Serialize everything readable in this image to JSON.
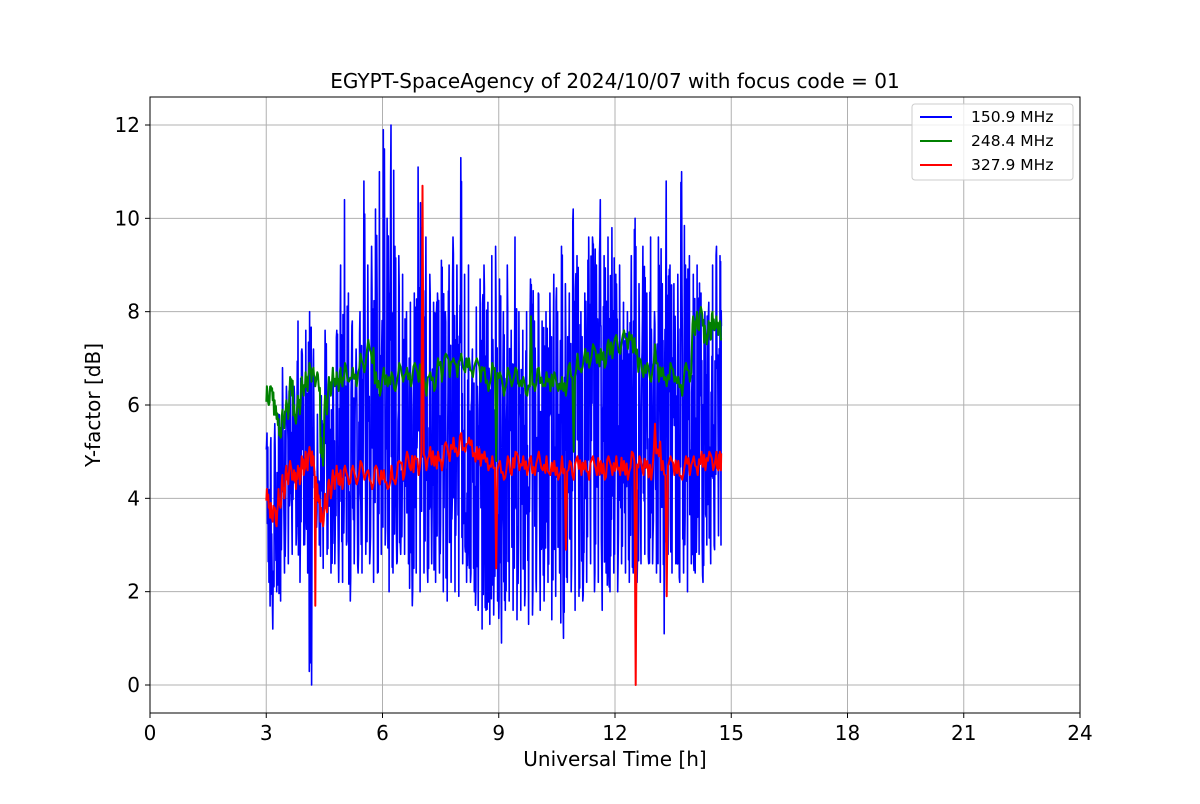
{
  "chart_data": {
    "type": "line",
    "title": "EGYPT-SpaceAgency of 2024/10/07 with focus code = 01",
    "xlabel": "Universal Time [h]",
    "ylabel": "Y-factor [dB]",
    "xlim": [
      0,
      24
    ],
    "ylim": [
      -0.6,
      12.6
    ],
    "xticks": [
      0,
      3,
      6,
      9,
      12,
      15,
      18,
      21,
      24
    ],
    "xtick_labels": [
      "0",
      "3",
      "6",
      "9",
      "12",
      "15",
      "18",
      "21",
      "24"
    ],
    "yticks": [
      0,
      2,
      4,
      6,
      8,
      10,
      12
    ],
    "ytick_labels": [
      "0",
      "2",
      "4",
      "6",
      "8",
      "10",
      "12"
    ],
    "grid": true,
    "legend_position": "top-right",
    "series": [
      {
        "name": "150.9 MHz",
        "color": "#0000ff",
        "x": [
          3.0,
          3.1,
          3.2,
          3.3,
          3.4,
          3.5,
          3.6,
          3.7,
          3.8,
          3.9,
          4.0,
          4.1,
          4.2,
          4.3,
          4.4,
          4.5,
          4.6,
          4.7,
          4.8,
          4.9,
          5.0,
          5.1,
          5.2,
          5.3,
          5.4,
          5.5,
          5.6,
          5.7,
          5.8,
          5.9,
          6.0,
          6.1,
          6.2,
          6.3,
          6.4,
          6.5,
          6.6,
          6.7,
          6.8,
          6.9,
          7.0,
          7.1,
          7.2,
          7.3,
          7.4,
          7.5,
          7.6,
          7.7,
          7.8,
          7.9,
          8.0,
          8.1,
          8.2,
          8.3,
          8.4,
          8.5,
          8.6,
          8.7,
          8.8,
          8.9,
          9.0,
          9.1,
          9.2,
          9.3,
          9.4,
          9.5,
          9.6,
          9.7,
          9.8,
          9.9,
          10.0,
          10.1,
          10.2,
          10.3,
          10.4,
          10.5,
          10.6,
          10.7,
          10.8,
          10.9,
          11.0,
          11.1,
          11.2,
          11.3,
          11.4,
          11.5,
          11.6,
          11.7,
          11.8,
          11.9,
          12.0,
          12.1,
          12.2,
          12.3,
          12.4,
          12.5,
          12.6,
          12.7,
          12.8,
          12.9,
          13.0,
          13.1,
          13.2,
          13.3,
          13.4,
          13.5,
          13.6,
          13.7,
          13.8,
          13.9,
          14.0,
          14.1,
          14.2,
          14.3,
          14.4,
          14.5,
          14.6,
          14.7
        ],
        "y_max": [
          5.4,
          5.3,
          5.6,
          5.8,
          6.8,
          6.4,
          6.6,
          6.4,
          7.8,
          7.2,
          7.6,
          8.0,
          7.2,
          5.8,
          6.2,
          7.6,
          6.6,
          6.8,
          7.6,
          9.0,
          10.4,
          8.4,
          7.8,
          7.2,
          8.0,
          10.8,
          9.0,
          9.4,
          10.2,
          11.0,
          11.9,
          10.0,
          12.0,
          9.4,
          9.2,
          8.8,
          8.0,
          8.2,
          8.4,
          11.1,
          9.8,
          9.6,
          8.8,
          8.2,
          8.4,
          9.1,
          8.0,
          9.0,
          9.6,
          9.0,
          11.3,
          8.8,
          9.0,
          7.2,
          8.1,
          8.7,
          9.0,
          8.2,
          9.2,
          9.4,
          8.7,
          8.0,
          9.0,
          7.6,
          9.6,
          8.0,
          7.6,
          8.0,
          8.7,
          7.8,
          8.4,
          7.8,
          8.0,
          8.4,
          8.8,
          8.0,
          9.4,
          8.6,
          8.4,
          10.2,
          9.2,
          8.0,
          8.4,
          9.6,
          9.6,
          9.0,
          10.4,
          9.2,
          9.6,
          9.8,
          8.8,
          9.0,
          8.2,
          8.0,
          9.2,
          10.0,
          8.6,
          9.4,
          8.4,
          9.6,
          8.0,
          9.6,
          8.6,
          10.8,
          9.0,
          8.6,
          8.8,
          11.0,
          9.0,
          9.2,
          8.8,
          9.0,
          8.4,
          8.0,
          8.2,
          9.0,
          9.4,
          9.2
        ],
        "y_min": [
          2.2,
          1.2,
          2.0,
          1.8,
          2.4,
          2.6,
          2.8,
          3.0,
          2.2,
          3.0,
          2.4,
          0.0,
          3.4,
          3.0,
          2.5,
          2.8,
          2.4,
          2.6,
          2.2,
          2.2,
          3.0,
          1.8,
          2.6,
          2.4,
          2.4,
          2.8,
          2.6,
          2.2,
          2.4,
          2.8,
          3.0,
          2.0,
          2.4,
          2.6,
          2.8,
          2.8,
          2.6,
          1.7,
          2.4,
          2.0,
          2.4,
          2.2,
          2.6,
          2.2,
          2.4,
          2.0,
          1.8,
          2.2,
          2.0,
          1.9,
          2.6,
          2.2,
          2.2,
          2.0,
          1.6,
          1.2,
          1.6,
          1.3,
          1.5,
          1.8,
          0.9,
          1.6,
          1.8,
          1.6,
          1.4,
          1.6,
          1.7,
          1.3,
          1.5,
          2.0,
          1.6,
          1.8,
          2.2,
          1.4,
          1.9,
          2.4,
          1.0,
          2.2,
          2.0,
          1.6,
          1.9,
          1.8,
          2.2,
          2.6,
          2.0,
          2.2,
          1.6,
          2.4,
          2.0,
          2.4,
          2.0,
          2.6,
          2.4,
          2.2,
          2.4,
          2.2,
          2.6,
          2.8,
          2.6,
          2.6,
          2.4,
          2.2,
          1.1,
          2.8,
          2.4,
          2.6,
          2.2,
          2.4,
          2.0,
          2.6,
          2.4,
          2.8,
          2.2,
          3.0,
          2.6,
          2.9,
          3.2,
          3.0
        ]
      },
      {
        "name": "248.4 MHz",
        "color": "#008000",
        "x": [
          3.0,
          3.1,
          3.2,
          3.3,
          3.4,
          3.5,
          3.6,
          3.7,
          3.8,
          3.9,
          4.0,
          4.1,
          4.2,
          4.3,
          4.4,
          4.5,
          4.6,
          4.7,
          4.8,
          4.9,
          5.0,
          5.2,
          5.4,
          5.6,
          5.8,
          6.0,
          6.2,
          6.4,
          6.6,
          6.8,
          7.0,
          7.2,
          7.4,
          7.6,
          7.8,
          8.0,
          8.2,
          8.4,
          8.6,
          8.8,
          9.0,
          9.2,
          9.4,
          9.6,
          9.8,
          10.0,
          10.2,
          10.4,
          10.6,
          10.8,
          11.0,
          11.2,
          11.4,
          11.6,
          11.8,
          12.0,
          12.2,
          12.4,
          12.6,
          12.8,
          13.0,
          13.2,
          13.4,
          13.6,
          13.8,
          14.0,
          14.1,
          14.2,
          14.3,
          14.4,
          14.5,
          14.6,
          14.7
        ],
        "y": [
          6.2,
          6.3,
          5.9,
          5.5,
          5.7,
          5.9,
          6.4,
          5.8,
          6.0,
          6.4,
          6.5,
          6.7,
          6.6,
          6.5,
          5.0,
          6.0,
          6.4,
          6.6,
          6.5,
          6.6,
          6.7,
          6.6,
          6.9,
          7.1,
          6.5,
          6.6,
          6.5,
          6.7,
          6.6,
          6.7,
          6.6,
          6.5,
          6.8,
          6.9,
          6.8,
          6.9,
          6.8,
          6.8,
          6.6,
          6.7,
          6.5,
          6.6,
          6.6,
          6.4,
          6.5,
          6.6,
          6.5,
          6.5,
          6.4,
          6.7,
          6.9,
          7.0,
          7.1,
          7.0,
          7.2,
          7.3,
          7.4,
          7.3,
          6.8,
          6.7,
          6.8,
          6.6,
          6.7,
          6.4,
          6.7,
          7.7,
          7.8,
          7.9,
          7.5,
          7.6,
          7.8,
          7.7,
          7.6
        ],
        "y_max": [
          6.4,
          6.4,
          6.1,
          5.7,
          5.9,
          6.1,
          6.6,
          6.0,
          6.2,
          6.6,
          6.7,
          6.9,
          6.8,
          6.7,
          5.3,
          6.2,
          6.6,
          6.8,
          6.7,
          6.8,
          6.9,
          6.8,
          7.1,
          7.4,
          6.7,
          6.8,
          6.7,
          6.9,
          6.8,
          6.9,
          7.0,
          6.7,
          7.0,
          7.1,
          7.0,
          7.1,
          7.0,
          7.0,
          6.8,
          6.9,
          6.7,
          6.8,
          6.8,
          6.6,
          7.9,
          6.8,
          6.7,
          6.7,
          6.6,
          6.9,
          7.1,
          7.2,
          7.3,
          7.2,
          7.4,
          7.5,
          7.6,
          7.5,
          7.0,
          6.9,
          7.3,
          6.8,
          6.9,
          6.6,
          6.9,
          7.9,
          8.0,
          8.1,
          7.7,
          7.8,
          8.0,
          7.9,
          7.8
        ],
        "y_min": [
          6.0,
          6.1,
          5.7,
          5.3,
          5.5,
          5.7,
          6.2,
          5.6,
          5.8,
          6.2,
          6.3,
          6.5,
          6.4,
          6.3,
          4.7,
          5.8,
          6.2,
          6.4,
          6.3,
          6.4,
          6.5,
          6.4,
          6.7,
          6.9,
          6.2,
          6.4,
          6.3,
          6.5,
          6.4,
          6.5,
          6.2,
          6.3,
          6.5,
          6.6,
          6.6,
          6.7,
          6.6,
          6.5,
          6.3,
          4.8,
          6.2,
          6.4,
          6.4,
          6.2,
          6.3,
          6.4,
          6.3,
          6.3,
          6.2,
          5.0,
          6.7,
          6.8,
          6.9,
          6.8,
          7.0,
          7.1,
          7.2,
          7.1,
          6.6,
          6.5,
          6.5,
          6.4,
          6.5,
          6.2,
          6.5,
          7.5,
          7.6,
          7.7,
          7.3,
          7.4,
          7.6,
          7.5,
          7.4
        ]
      },
      {
        "name": "327.9 MHz",
        "color": "#ff0000",
        "x": [
          3.0,
          3.1,
          3.2,
          3.3,
          3.4,
          3.5,
          3.6,
          3.7,
          3.8,
          3.9,
          4.0,
          4.1,
          4.2,
          4.3,
          4.4,
          4.5,
          4.6,
          4.7,
          4.8,
          4.9,
          5.0,
          5.2,
          5.4,
          5.6,
          5.8,
          6.0,
          6.2,
          6.4,
          6.6,
          6.8,
          7.0,
          7.2,
          7.4,
          7.6,
          7.8,
          8.0,
          8.2,
          8.4,
          8.6,
          8.8,
          9.0,
          9.2,
          9.4,
          9.6,
          9.8,
          10.0,
          10.2,
          10.4,
          10.6,
          10.8,
          11.0,
          11.2,
          11.4,
          11.6,
          11.8,
          12.0,
          12.2,
          12.4,
          12.6,
          12.8,
          13.0,
          13.2,
          13.4,
          13.6,
          13.8,
          14.0,
          14.2,
          14.4,
          14.6,
          14.7
        ],
        "y": [
          4.0,
          3.7,
          3.6,
          4.0,
          4.2,
          4.5,
          4.6,
          4.4,
          4.5,
          4.7,
          4.8,
          4.9,
          4.6,
          4.1,
          3.6,
          3.9,
          4.2,
          4.4,
          4.5,
          4.4,
          4.5,
          4.5,
          4.6,
          4.4,
          4.5,
          4.4,
          4.5,
          4.6,
          4.8,
          4.7,
          4.8,
          4.9,
          4.8,
          5.0,
          5.1,
          5.2,
          5.1,
          4.9,
          4.8,
          4.7,
          4.6,
          4.7,
          4.8,
          4.7,
          4.7,
          4.8,
          4.7,
          4.6,
          4.7,
          4.6,
          4.7,
          4.6,
          4.7,
          4.6,
          4.7,
          4.7,
          4.6,
          4.8,
          4.7,
          4.6,
          5.1,
          4.6,
          4.7,
          4.6,
          4.7,
          4.7,
          4.8,
          4.8,
          4.8,
          4.8
        ],
        "y_max": [
          4.2,
          3.9,
          3.8,
          4.2,
          4.5,
          4.7,
          4.8,
          4.6,
          4.7,
          4.9,
          5.0,
          5.1,
          4.9,
          4.3,
          3.8,
          4.1,
          4.4,
          4.6,
          4.7,
          4.6,
          4.7,
          4.7,
          4.8,
          4.6,
          4.7,
          4.6,
          4.7,
          4.8,
          5.0,
          4.9,
          10.7,
          5.1,
          5.0,
          5.2,
          5.3,
          5.4,
          5.3,
          5.1,
          5.0,
          4.9,
          4.8,
          4.9,
          5.0,
          4.9,
          4.9,
          5.0,
          4.9,
          4.8,
          4.9,
          4.8,
          4.9,
          4.8,
          4.9,
          4.8,
          4.9,
          4.9,
          4.8,
          5.0,
          4.9,
          4.8,
          5.6,
          4.8,
          4.9,
          4.8,
          4.9,
          4.9,
          5.0,
          5.0,
          5.0,
          5.0
        ],
        "y_min": [
          3.8,
          3.5,
          3.4,
          3.8,
          4.0,
          4.3,
          4.4,
          4.2,
          4.3,
          4.5,
          4.6,
          4.7,
          1.7,
          3.9,
          3.4,
          3.7,
          4.0,
          4.2,
          4.3,
          4.2,
          4.3,
          4.3,
          4.4,
          4.2,
          4.3,
          4.2,
          4.3,
          4.4,
          4.6,
          4.5,
          4.6,
          4.7,
          4.6,
          4.8,
          4.9,
          5.0,
          4.9,
          4.7,
          4.6,
          2.5,
          4.4,
          4.5,
          4.6,
          4.5,
          4.5,
          4.6,
          4.5,
          4.4,
          2.9,
          4.4,
          4.5,
          4.4,
          4.5,
          4.4,
          4.5,
          4.5,
          4.4,
          0.0,
          4.5,
          4.4,
          4.9,
          1.9,
          4.5,
          4.4,
          4.5,
          4.5,
          4.6,
          4.6,
          4.6,
          4.6
        ]
      }
    ]
  }
}
